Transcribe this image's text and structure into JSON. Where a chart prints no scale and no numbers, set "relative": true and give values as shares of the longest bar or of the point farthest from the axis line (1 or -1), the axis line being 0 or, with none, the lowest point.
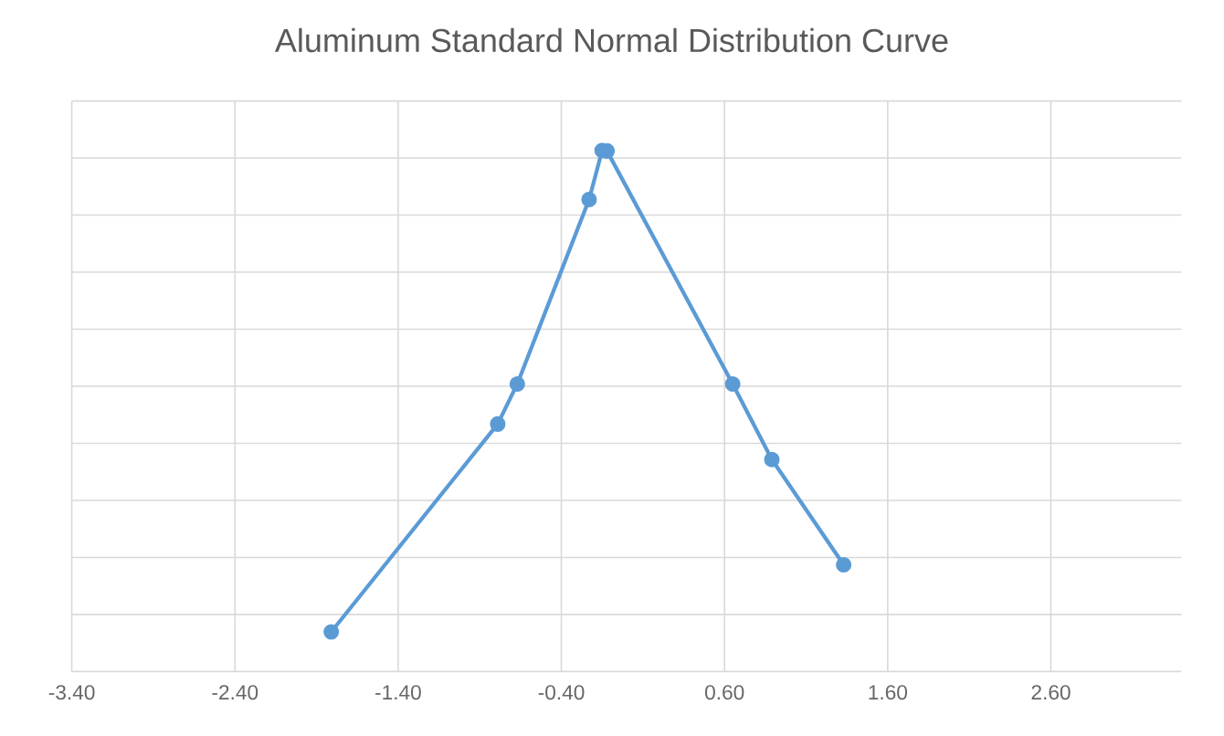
{
  "chart_data": {
    "type": "line",
    "title": "Aluminum Standard Normal Distribution Curve",
    "x": [
      -1.81,
      -0.79,
      -0.67,
      -0.23,
      -0.15,
      -0.12,
      0.65,
      0.89,
      1.33
    ],
    "series": [
      {
        "color": "#5b9bd5",
        "values": [
          0.076,
          0.475,
          0.552,
          0.906,
          1,
          0.999,
          0.552,
          0.407,
          0.205
        ]
      }
    ],
    "relative": true,
    "xlim": [
      -3.4,
      3.4
    ],
    "xticks": [
      {
        "value": -3.4,
        "label": "-3.40"
      },
      {
        "value": -2.4,
        "label": "-2.40"
      },
      {
        "value": -1.4,
        "label": "-1.40"
      },
      {
        "value": -0.4,
        "label": "-0.40"
      },
      {
        "value": 0.6,
        "label": "0.60"
      },
      {
        "value": 1.6,
        "label": "1.60"
      },
      {
        "value": 2.6,
        "label": "2.60"
      }
    ],
    "tick_labels": "x",
    "grid": true,
    "marker": "circle",
    "line_style": "solid",
    "legend": false
  }
}
